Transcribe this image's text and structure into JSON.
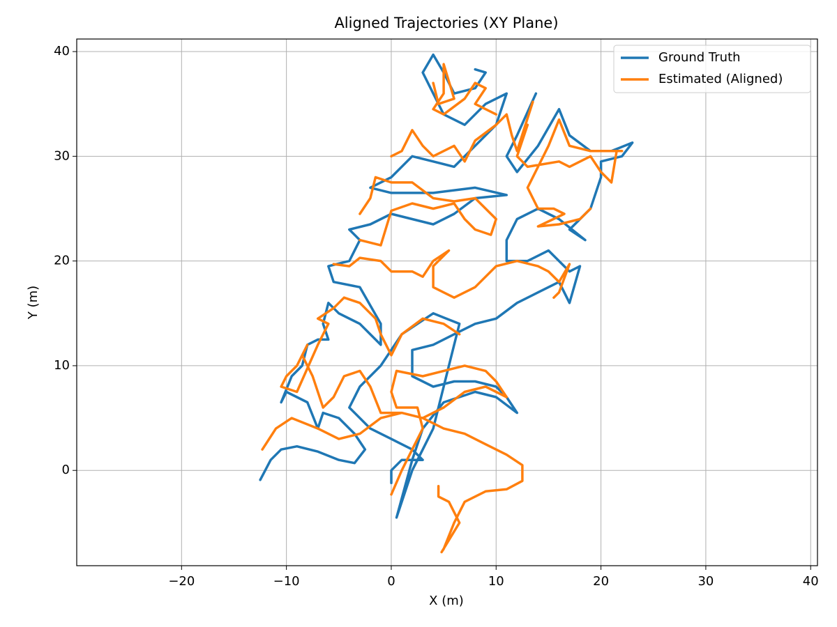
{
  "chart_data": {
    "type": "line",
    "title": "Aligned Trajectories (XY Plane)",
    "x_label": "X (m)",
    "y_label": "Y (m)",
    "xlim": [
      -30,
      40.65
    ],
    "ylim": [
      -9.1,
      41.2
    ],
    "xticks": [
      {
        "value": -20,
        "label": "−20"
      },
      {
        "value": -10,
        "label": "−10"
      },
      0,
      10,
      20,
      30,
      40
    ],
    "yticks": [
      0,
      10,
      20,
      30,
      40
    ],
    "grid": true,
    "legend": "upper right",
    "series": [
      {
        "name": "Ground Truth",
        "color": "#1f77b4",
        "x": [
          -12.5,
          -11.5,
          -10.5,
          -9,
          -7,
          -5,
          -3.5,
          -2.5,
          -3.5,
          -5,
          -6.5,
          -7,
          -8,
          -9,
          -10,
          -10.5,
          -9.5,
          -8.5,
          -8,
          -7,
          -6,
          -6.5,
          -6,
          -5,
          -3,
          -1,
          -1,
          -3,
          -5.5,
          -6,
          -4,
          -3,
          -4,
          -2,
          0,
          2,
          4,
          6,
          8,
          11,
          8,
          4,
          0,
          -2,
          0,
          2,
          4,
          6,
          8,
          10,
          11,
          9,
          7,
          5,
          4,
          3,
          4,
          5,
          6,
          8,
          9,
          8,
          null,
          13.8,
          12,
          11,
          12,
          14,
          16,
          17,
          19,
          21,
          23,
          22,
          20,
          20,
          19,
          17,
          18.5,
          16,
          14,
          12,
          11,
          11,
          13,
          15,
          17,
          18,
          17,
          16,
          14,
          12,
          10,
          8,
          6,
          4,
          2,
          2,
          4,
          6,
          8,
          10,
          11,
          12,
          10,
          8,
          5,
          3,
          2,
          0.5,
          2,
          3,
          4,
          5,
          6,
          6.5,
          4,
          1,
          -1,
          -3,
          -4,
          -2,
          0,
          2,
          3,
          1,
          0,
          0
        ],
        "values": [
          -0.9,
          1,
          2,
          2.3,
          1.8,
          1,
          0.7,
          2,
          3.5,
          5,
          5.5,
          4,
          6.5,
          7,
          7.5,
          6.5,
          9,
          10,
          12,
          12.5,
          12.5,
          14,
          16,
          15,
          14,
          12,
          14,
          17.5,
          18,
          19.5,
          20,
          22,
          23,
          23.5,
          24.5,
          24,
          23.5,
          24.5,
          26,
          26.3,
          27,
          26.5,
          26.5,
          27,
          28,
          30,
          29.5,
          29,
          31,
          33,
          36,
          35,
          33,
          34,
          36,
          38,
          39.7,
          38,
          36,
          36.5,
          38,
          38.3,
          null,
          36,
          32,
          30,
          28.5,
          31,
          34.5,
          32,
          30.5,
          30.5,
          31.3,
          30,
          29.5,
          28,
          25,
          23,
          22,
          24,
          25,
          24,
          22,
          20,
          20,
          21,
          19,
          19.5,
          16,
          18,
          17,
          16,
          14.5,
          14,
          13,
          12,
          11.5,
          9,
          8,
          8.5,
          8.5,
          8,
          7,
          5.5,
          7,
          7.5,
          6.5,
          4,
          1,
          -4.5,
          0,
          2,
          4,
          8,
          12,
          14,
          15,
          13,
          10,
          8,
          6,
          4,
          3,
          2,
          1,
          1,
          0,
          -1.2
        ]
      },
      {
        "name": "Estimated (Aligned)",
        "color": "#ff7f0e",
        "x": [
          -12.3,
          -11,
          -9.5,
          -7,
          -5,
          -3,
          -1,
          1,
          3,
          5,
          7,
          9,
          11,
          12.5,
          12.5,
          11,
          9,
          7,
          6,
          5,
          4.8,
          6.5,
          5.5,
          4.5,
          4.5,
          null,
          0,
          1,
          2,
          3,
          2.5,
          0.5,
          0,
          0.5,
          3,
          5,
          7,
          9,
          10,
          11,
          9,
          7,
          5,
          3,
          1,
          -1,
          -2,
          -3,
          -4.5,
          -5.5,
          -6.5,
          -7.5,
          -8.5,
          -8,
          -9,
          -10,
          -10.5,
          -9,
          -7,
          -6,
          -7,
          -5.5,
          -4.5,
          -3,
          -1.5,
          -1,
          0,
          1,
          3,
          5,
          6.5,
          null,
          -5.5,
          -4,
          -3,
          -1,
          0,
          2,
          3,
          4,
          5.5,
          4,
          4,
          6,
          8,
          8.5,
          10,
          12,
          14,
          15,
          16,
          17,
          16,
          15.5,
          null,
          -3,
          -1,
          0,
          2,
          4,
          6,
          7,
          8,
          9.5,
          10,
          8,
          6,
          4,
          2,
          0,
          -1.5,
          -2,
          -3,
          null,
          0,
          1,
          2,
          3,
          4,
          6,
          7,
          8,
          10,
          11,
          11.5,
          12,
          13.5,
          null,
          13,
          12,
          13,
          16,
          17,
          19,
          20,
          21,
          21.5,
          22,
          19,
          17,
          16,
          15,
          14,
          13,
          14,
          15.5,
          16.5,
          14,
          16,
          18,
          19,
          null,
          4,
          4.5,
          6,
          5,
          5,
          4,
          5,
          7,
          8,
          9,
          8,
          10
        ],
        "values": [
          2,
          4,
          5,
          4,
          3,
          3.5,
          5,
          5.5,
          5,
          4,
          3.5,
          2.5,
          1.5,
          0.5,
          -1,
          -1.8,
          -2,
          -3,
          -5,
          -7.5,
          -7.8,
          -5,
          -3,
          -2.5,
          -1.5,
          null,
          -2.3,
          0,
          2,
          4,
          6,
          6,
          7.5,
          9.5,
          9,
          9.5,
          10,
          9.5,
          8.5,
          7,
          8,
          7.5,
          6,
          5,
          5.5,
          5.5,
          8,
          9.5,
          9,
          7,
          6,
          9,
          11,
          12,
          10,
          9,
          8,
          7.5,
          12,
          14,
          14.5,
          15.5,
          16.5,
          16,
          14.5,
          13,
          11,
          13,
          14.5,
          14,
          13,
          null,
          19.7,
          19.5,
          20.3,
          20,
          19,
          19,
          18.5,
          20,
          21,
          19.5,
          17.5,
          16.5,
          17.5,
          18,
          19.5,
          20,
          19.5,
          19,
          18,
          19.7,
          17,
          16.5,
          null,
          22,
          21.5,
          24.8,
          25.5,
          25,
          25.5,
          24,
          23,
          22.5,
          24,
          26,
          25.7,
          26,
          27.5,
          27.5,
          28,
          26,
          24.5,
          null,
          30,
          30.5,
          32.5,
          31,
          30,
          31,
          29.5,
          31.5,
          33,
          34,
          32,
          30.5,
          35.2,
          null,
          33,
          30,
          29,
          29.5,
          29,
          30,
          28.5,
          27.5,
          30.5,
          30.5,
          30.5,
          31,
          33.5,
          31,
          29,
          27,
          25,
          25,
          24.5,
          23.3,
          23.5,
          24,
          25,
          null,
          37,
          35,
          35.5,
          38.8,
          36,
          34.5,
          34,
          35.5,
          37,
          36.5,
          35,
          34
        ]
      }
    ]
  }
}
